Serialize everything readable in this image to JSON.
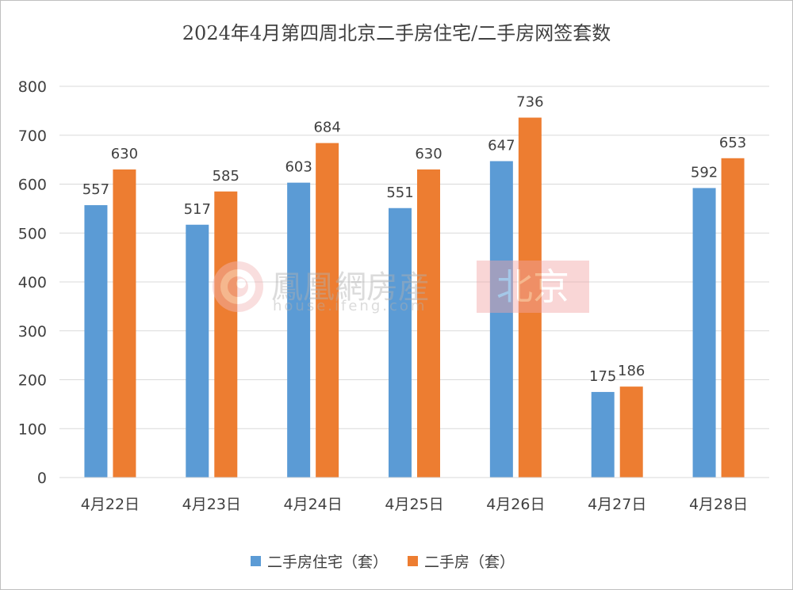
{
  "chart_data": {
    "type": "bar",
    "title": "2024年4月第四周北京二手房住宅/二手房网签套数",
    "categories": [
      "4月22日",
      "4月23日",
      "4月24日",
      "4月25日",
      "4月26日",
      "4月27日",
      "4月28日"
    ],
    "series": [
      {
        "name": "二手房住宅（套）",
        "values": [
          557,
          517,
          603,
          551,
          647,
          175,
          592
        ],
        "color": "#5b9bd5"
      },
      {
        "name": "二手房（套）",
        "values": [
          630,
          585,
          684,
          630,
          736,
          186,
          653
        ],
        "color": "#ed7d31"
      }
    ],
    "ylim": [
      0,
      800
    ],
    "yticks": [
      0,
      100,
      200,
      300,
      400,
      500,
      600,
      700,
      800
    ],
    "grid": true,
    "legend": "bottom",
    "data_labels": true
  },
  "watermark": {
    "brand": "鳳凰網房産",
    "url": "house.ifeng.com",
    "city": "北京"
  }
}
